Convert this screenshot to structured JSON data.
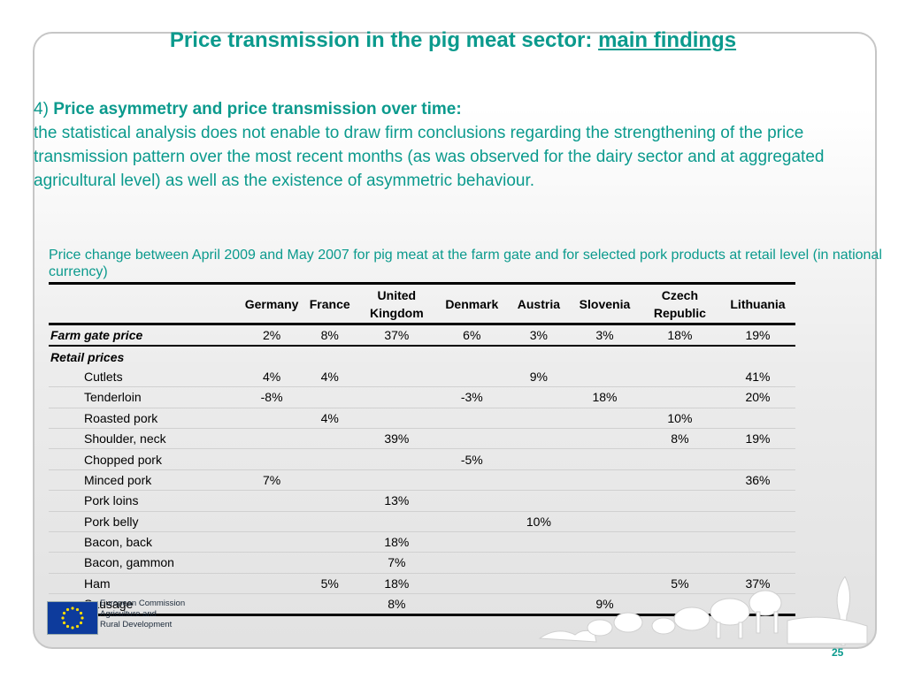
{
  "title": {
    "prefix": "Price transmission in the pig meat sector: ",
    "underlined": "main findings"
  },
  "point": {
    "number": "4)",
    "heading": "Price asymmetry and price transmission over time:",
    "body": "the statistical analysis does not enable to draw firm conclusions regarding the strengthening of the price transmission pattern over the most recent months (as was observed for the dairy sector and at aggregated agricultural level) as well as the existence of asymmetric behaviour."
  },
  "table": {
    "caption": "Price change between April 2009 and May 2007 for pig meat at the farm gate and for selected pork products at retail level (in national currency)",
    "columns": [
      "Germany",
      "France",
      "United Kingdom",
      "Denmark",
      "Austria",
      "Slovenia",
      "Czech Republic",
      "Lithuania"
    ],
    "farm_row": {
      "label": "Farm gate price",
      "values": [
        "2%",
        "8%",
        "37%",
        "6%",
        "3%",
        "3%",
        "18%",
        "19%"
      ]
    },
    "retail_header": "Retail prices",
    "retail_rows": [
      {
        "label": "Cutlets",
        "values": [
          "4%",
          "4%",
          "",
          "",
          "9%",
          "",
          "",
          "41%"
        ]
      },
      {
        "label": "Tenderloin",
        "values": [
          "-8%",
          "",
          "",
          "-3%",
          "",
          "18%",
          "",
          "20%"
        ]
      },
      {
        "label": "Roasted pork",
        "values": [
          "",
          "4%",
          "",
          "",
          "",
          "",
          "10%",
          ""
        ]
      },
      {
        "label": "Shoulder, neck",
        "values": [
          "",
          "",
          "39%",
          "",
          "",
          "",
          "8%",
          "19%"
        ]
      },
      {
        "label": "Chopped pork",
        "values": [
          "",
          "",
          "",
          "-5%",
          "",
          "",
          "",
          ""
        ]
      },
      {
        "label": "Minced pork",
        "values": [
          "7%",
          "",
          "",
          "",
          "",
          "",
          "",
          "36%"
        ]
      },
      {
        "label": "Pork loins",
        "values": [
          "",
          "",
          "13%",
          "",
          "",
          "",
          "",
          ""
        ]
      },
      {
        "label": "Pork belly",
        "values": [
          "",
          "",
          "",
          "",
          "10%",
          "",
          "",
          ""
        ]
      },
      {
        "label": "Bacon, back",
        "values": [
          "",
          "",
          "18%",
          "",
          "",
          "",
          "",
          ""
        ]
      },
      {
        "label": "Bacon, gammon",
        "values": [
          "",
          "",
          "7%",
          "",
          "",
          "",
          "",
          ""
        ]
      },
      {
        "label": "Ham",
        "values": [
          "",
          "5%",
          "18%",
          "",
          "",
          "",
          "5%",
          "37%"
        ]
      },
      {
        "label": "Sausage",
        "values": [
          "",
          "",
          "8%",
          "",
          "",
          "9%",
          "",
          ""
        ]
      }
    ]
  },
  "footer": {
    "logo_lines": [
      "European Commission",
      "Agriculture and",
      "Rural Development"
    ],
    "page_number": "25"
  },
  "colors": {
    "accent": "#0b9a8d",
    "eu_blue": "#0d3b9c",
    "eu_gold": "#ffdd00"
  }
}
